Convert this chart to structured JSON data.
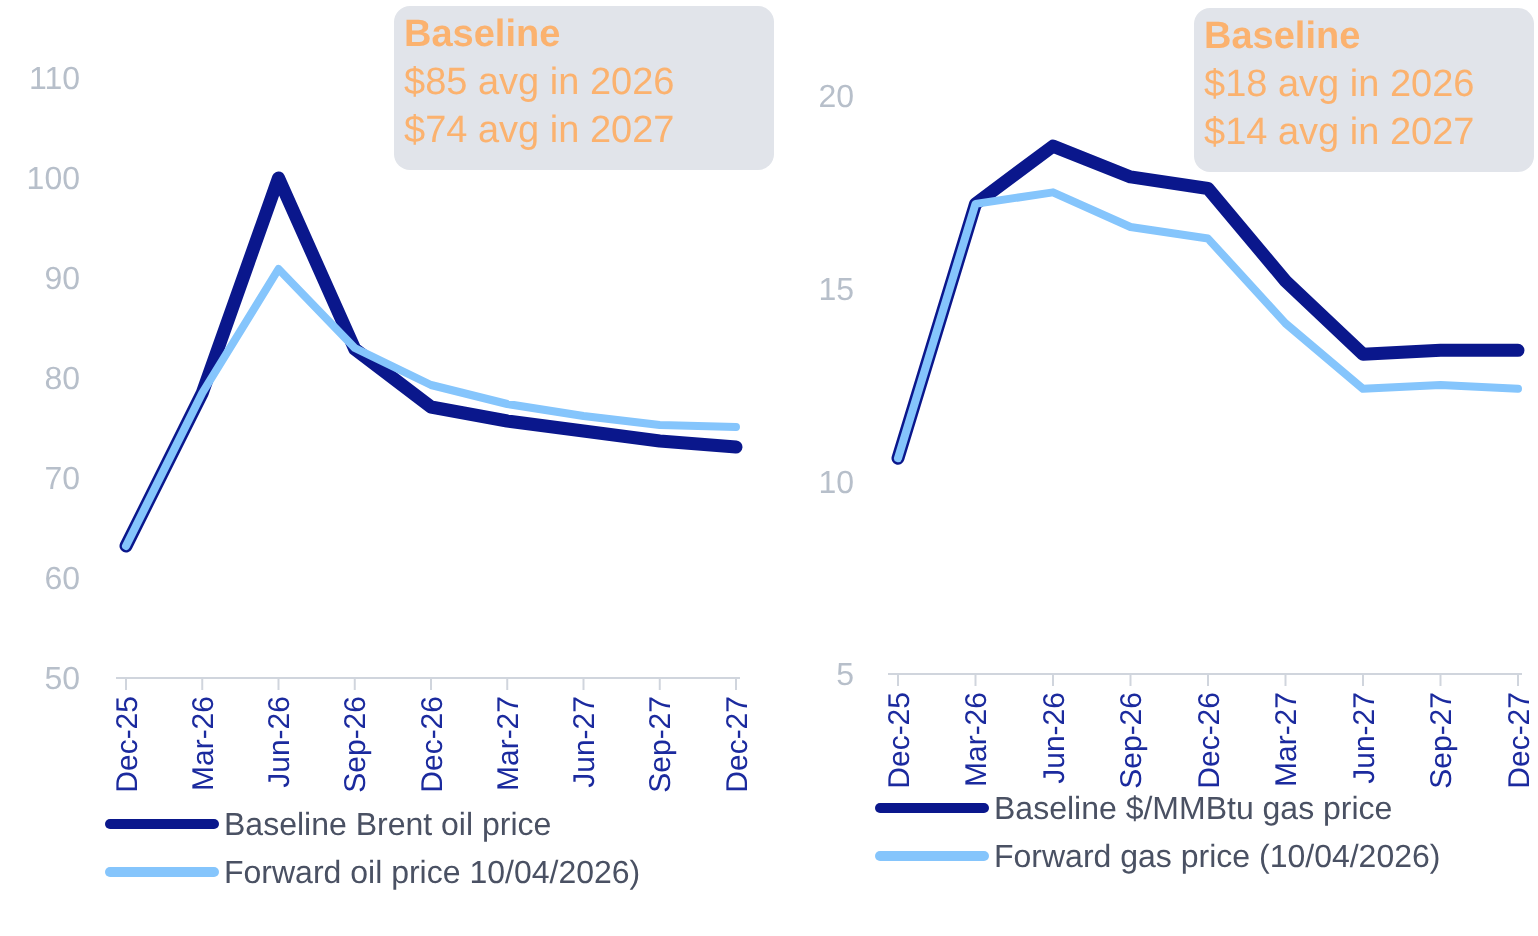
{
  "chart_data": [
    {
      "type": "line",
      "categories": [
        "Dec-25",
        "Mar-26",
        "Jun-26",
        "Sep-26",
        "Dec-26",
        "Mar-27",
        "Jun-27",
        "Sep-27",
        "Dec-27"
      ],
      "series": [
        {
          "name": "Baseline Brent oil price",
          "color": "#0a178c",
          "values": [
            63.2,
            78.5,
            100,
            82.9,
            77.1,
            75.7,
            74.7,
            73.7,
            73.1
          ]
        },
        {
          "name": "Forward oil price 10/04/2026)",
          "color": "#85c5fc",
          "values": [
            63.2,
            78.5,
            90.9,
            83,
            79.3,
            77.4,
            76.2,
            75.3,
            75.1
          ]
        }
      ],
      "ylim": [
        50,
        110
      ],
      "yticks": [
        50,
        60,
        70,
        80,
        90,
        100,
        110
      ],
      "grid": false,
      "legend": "bottom",
      "marker": "none",
      "line_style": "solid",
      "annotations": [
        "Baseline",
        "$85 avg in 2026",
        "$74 avg in 2027"
      ]
    },
    {
      "type": "line",
      "categories": [
        "Dec-25",
        "Mar-26",
        "Jun-26",
        "Sep-26",
        "Dec-26",
        "Mar-27",
        "Jun-27",
        "Sep-27",
        "Dec-27"
      ],
      "series": [
        {
          "name": "Baseline $/MMBtu gas price",
          "color": "#0a178c",
          "values": [
            10.6,
            17.2,
            18.7,
            17.9,
            17.6,
            15.2,
            13.3,
            13.4,
            13.4
          ]
        },
        {
          "name": "Forward gas price (10/04/2026)",
          "color": "#85c5fc",
          "values": [
            10.6,
            17.2,
            17.5,
            16.6,
            16.3,
            14.1,
            12.4,
            12.5,
            12.4
          ]
        }
      ],
      "ylim": [
        5,
        20
      ],
      "yticks": [
        5,
        10,
        15,
        20
      ],
      "grid": false,
      "legend": "bottom",
      "marker": "none",
      "line_style": "solid",
      "annotations": [
        "Baseline",
        "$18 avg in 2026",
        "$14 avg in 2027"
      ]
    }
  ]
}
